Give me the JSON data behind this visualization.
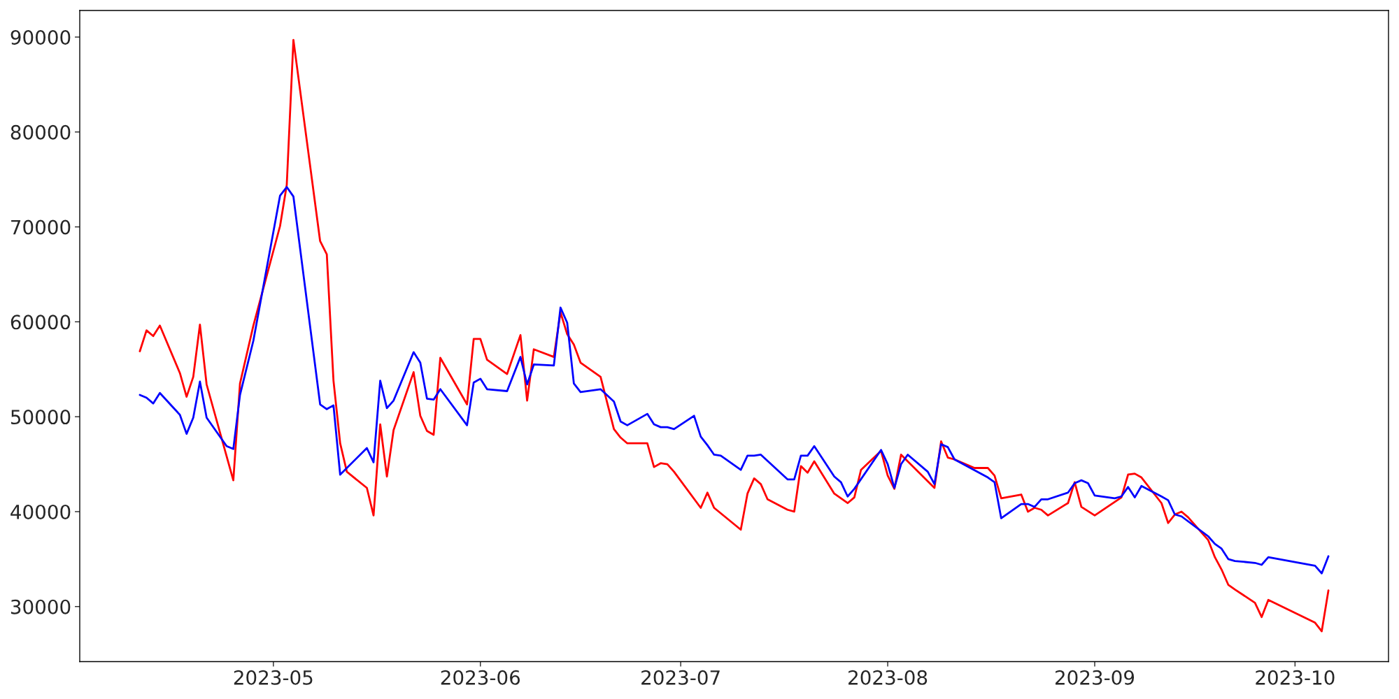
{
  "chart_data": {
    "type": "line",
    "xlim": [
      "2023-04-02",
      "2023-10-15"
    ],
    "ylim": [
      24200,
      92800
    ],
    "xticks": [
      "2023-05",
      "2023-06",
      "2023-07",
      "2023-08",
      "2023-09",
      "2023-10"
    ],
    "yticks": [
      30000,
      40000,
      50000,
      60000,
      70000,
      80000,
      90000
    ],
    "grid": false,
    "legend": false,
    "series": [
      {
        "color": "#ff0000",
        "x": [
          "2023-04-11",
          "2023-04-12",
          "2023-04-13",
          "2023-04-14",
          "2023-04-17",
          "2023-04-18",
          "2023-04-19",
          "2023-04-20",
          "2023-04-21",
          "2023-04-25",
          "2023-04-26",
          "2023-04-28",
          "2023-05-02",
          "2023-05-03",
          "2023-05-04",
          "2023-05-08",
          "2023-05-09",
          "2023-05-10",
          "2023-05-11",
          "2023-05-12",
          "2023-05-15",
          "2023-05-16",
          "2023-05-17",
          "2023-05-18",
          "2023-05-19",
          "2023-05-22",
          "2023-05-23",
          "2023-05-24",
          "2023-05-25",
          "2023-05-26",
          "2023-05-30",
          "2023-05-31",
          "2023-06-01",
          "2023-06-02",
          "2023-06-05",
          "2023-06-07",
          "2023-06-08",
          "2023-06-09",
          "2023-06-12",
          "2023-06-13",
          "2023-06-14",
          "2023-06-15",
          "2023-06-16",
          "2023-06-19",
          "2023-06-21",
          "2023-06-22",
          "2023-06-23",
          "2023-06-26",
          "2023-06-27",
          "2023-06-28",
          "2023-06-29",
          "2023-06-30",
          "2023-07-04",
          "2023-07-05",
          "2023-07-06",
          "2023-07-10",
          "2023-07-11",
          "2023-07-12",
          "2023-07-13",
          "2023-07-14",
          "2023-07-17",
          "2023-07-18",
          "2023-07-19",
          "2023-07-20",
          "2023-07-21",
          "2023-07-24",
          "2023-07-25",
          "2023-07-26",
          "2023-07-27",
          "2023-07-28",
          "2023-07-31",
          "2023-08-01",
          "2023-08-02",
          "2023-08-03",
          "2023-08-07",
          "2023-08-08",
          "2023-08-09",
          "2023-08-10",
          "2023-08-11",
          "2023-08-14",
          "2023-08-16",
          "2023-08-17",
          "2023-08-18",
          "2023-08-21",
          "2023-08-22",
          "2023-08-23",
          "2023-08-24",
          "2023-08-25",
          "2023-08-28",
          "2023-08-29",
          "2023-08-30",
          "2023-09-01",
          "2023-09-05",
          "2023-09-06",
          "2023-09-07",
          "2023-09-08",
          "2023-09-11",
          "2023-09-12",
          "2023-09-13",
          "2023-09-14",
          "2023-09-15",
          "2023-09-18",
          "2023-09-19",
          "2023-09-20",
          "2023-09-21",
          "2023-09-22",
          "2023-09-25",
          "2023-09-26",
          "2023-09-27",
          "2023-10-04",
          "2023-10-05",
          "2023-10-06"
        ],
        "values": [
          56900,
          59100,
          58500,
          59600,
          54600,
          52100,
          54200,
          59700,
          53400,
          43300,
          53500,
          59600,
          70100,
          74400,
          89700,
          68500,
          67100,
          53800,
          47200,
          44200,
          42500,
          39600,
          49200,
          43700,
          48600,
          54700,
          50100,
          48500,
          48100,
          56200,
          51300,
          58200,
          58200,
          56000,
          54500,
          58600,
          51700,
          57100,
          56300,
          61000,
          58700,
          57600,
          55700,
          54200,
          48700,
          47800,
          47200,
          47200,
          44700,
          45100,
          45000,
          44200,
          40400,
          42000,
          40400,
          38100,
          41900,
          43500,
          42900,
          41300,
          40200,
          40000,
          44800,
          44100,
          45300,
          41900,
          41400,
          40900,
          41500,
          44400,
          46400,
          43800,
          42400,
          46000,
          43200,
          42500,
          47400,
          45700,
          45500,
          44600,
          44600,
          43800,
          41400,
          41800,
          40000,
          40400,
          40200,
          39600,
          40900,
          43100,
          40500,
          39600,
          41500,
          43900,
          44000,
          43600,
          40900,
          38800,
          39700,
          40000,
          39400,
          37000,
          35200,
          33900,
          32300,
          31800,
          30400,
          28900,
          30700,
          28300,
          27400,
          31700
        ]
      },
      {
        "color": "#0000ff",
        "x": [
          "2023-04-11",
          "2023-04-12",
          "2023-04-13",
          "2023-04-14",
          "2023-04-17",
          "2023-04-18",
          "2023-04-19",
          "2023-04-20",
          "2023-04-21",
          "2023-04-24",
          "2023-04-25",
          "2023-04-26",
          "2023-04-28",
          "2023-05-02",
          "2023-05-03",
          "2023-05-04",
          "2023-05-08",
          "2023-05-09",
          "2023-05-10",
          "2023-05-11",
          "2023-05-15",
          "2023-05-16",
          "2023-05-17",
          "2023-05-18",
          "2023-05-19",
          "2023-05-22",
          "2023-05-23",
          "2023-05-24",
          "2023-05-25",
          "2023-05-26",
          "2023-05-30",
          "2023-05-31",
          "2023-06-01",
          "2023-06-02",
          "2023-06-05",
          "2023-06-07",
          "2023-06-08",
          "2023-06-09",
          "2023-06-12",
          "2023-06-13",
          "2023-06-14",
          "2023-06-15",
          "2023-06-16",
          "2023-06-19",
          "2023-06-21",
          "2023-06-22",
          "2023-06-23",
          "2023-06-26",
          "2023-06-27",
          "2023-06-28",
          "2023-06-29",
          "2023-06-30",
          "2023-07-03",
          "2023-07-04",
          "2023-07-05",
          "2023-07-06",
          "2023-07-07",
          "2023-07-10",
          "2023-07-11",
          "2023-07-12",
          "2023-07-13",
          "2023-07-17",
          "2023-07-18",
          "2023-07-19",
          "2023-07-20",
          "2023-07-21",
          "2023-07-24",
          "2023-07-25",
          "2023-07-26",
          "2023-07-27",
          "2023-07-31",
          "2023-08-01",
          "2023-08-02",
          "2023-08-03",
          "2023-08-04",
          "2023-08-07",
          "2023-08-08",
          "2023-08-09",
          "2023-08-10",
          "2023-08-11",
          "2023-08-16",
          "2023-08-17",
          "2023-08-18",
          "2023-08-21",
          "2023-08-22",
          "2023-08-23",
          "2023-08-24",
          "2023-08-25",
          "2023-08-28",
          "2023-08-29",
          "2023-08-30",
          "2023-08-31",
          "2023-09-01",
          "2023-09-04",
          "2023-09-05",
          "2023-09-06",
          "2023-09-07",
          "2023-09-08",
          "2023-09-11",
          "2023-09-12",
          "2023-09-13",
          "2023-09-14",
          "2023-09-18",
          "2023-09-19",
          "2023-09-20",
          "2023-09-21",
          "2023-09-22",
          "2023-09-25",
          "2023-09-26",
          "2023-09-27",
          "2023-10-04",
          "2023-10-05",
          "2023-10-06"
        ],
        "values": [
          52300,
          52000,
          51400,
          52500,
          50200,
          48200,
          49900,
          53700,
          49900,
          46900,
          46600,
          52300,
          58000,
          73300,
          74200,
          73200,
          51300,
          50800,
          51200,
          43900,
          46700,
          45200,
          53800,
          50900,
          51700,
          56800,
          55700,
          51900,
          51800,
          52900,
          49100,
          53600,
          54000,
          52900,
          52700,
          56300,
          53400,
          55500,
          55400,
          61500,
          59900,
          53500,
          52600,
          52900,
          51600,
          49500,
          49100,
          50300,
          49200,
          48900,
          48900,
          48700,
          50100,
          47900,
          47000,
          46000,
          45900,
          44400,
          45900,
          45900,
          46000,
          43400,
          43400,
          45900,
          45900,
          46900,
          43700,
          43100,
          41600,
          42400,
          46500,
          45000,
          42500,
          45000,
          46000,
          44200,
          42900,
          47100,
          46800,
          45500,
          43600,
          43100,
          39300,
          40800,
          40800,
          40500,
          41300,
          41300,
          42000,
          43000,
          43300,
          43000,
          41700,
          41400,
          41600,
          42600,
          41500,
          42700,
          41600,
          41200,
          39700,
          39500,
          37400,
          36600,
          36100,
          35000,
          34800,
          34600,
          34400,
          35200,
          34300,
          33500,
          35300
        ]
      }
    ]
  }
}
